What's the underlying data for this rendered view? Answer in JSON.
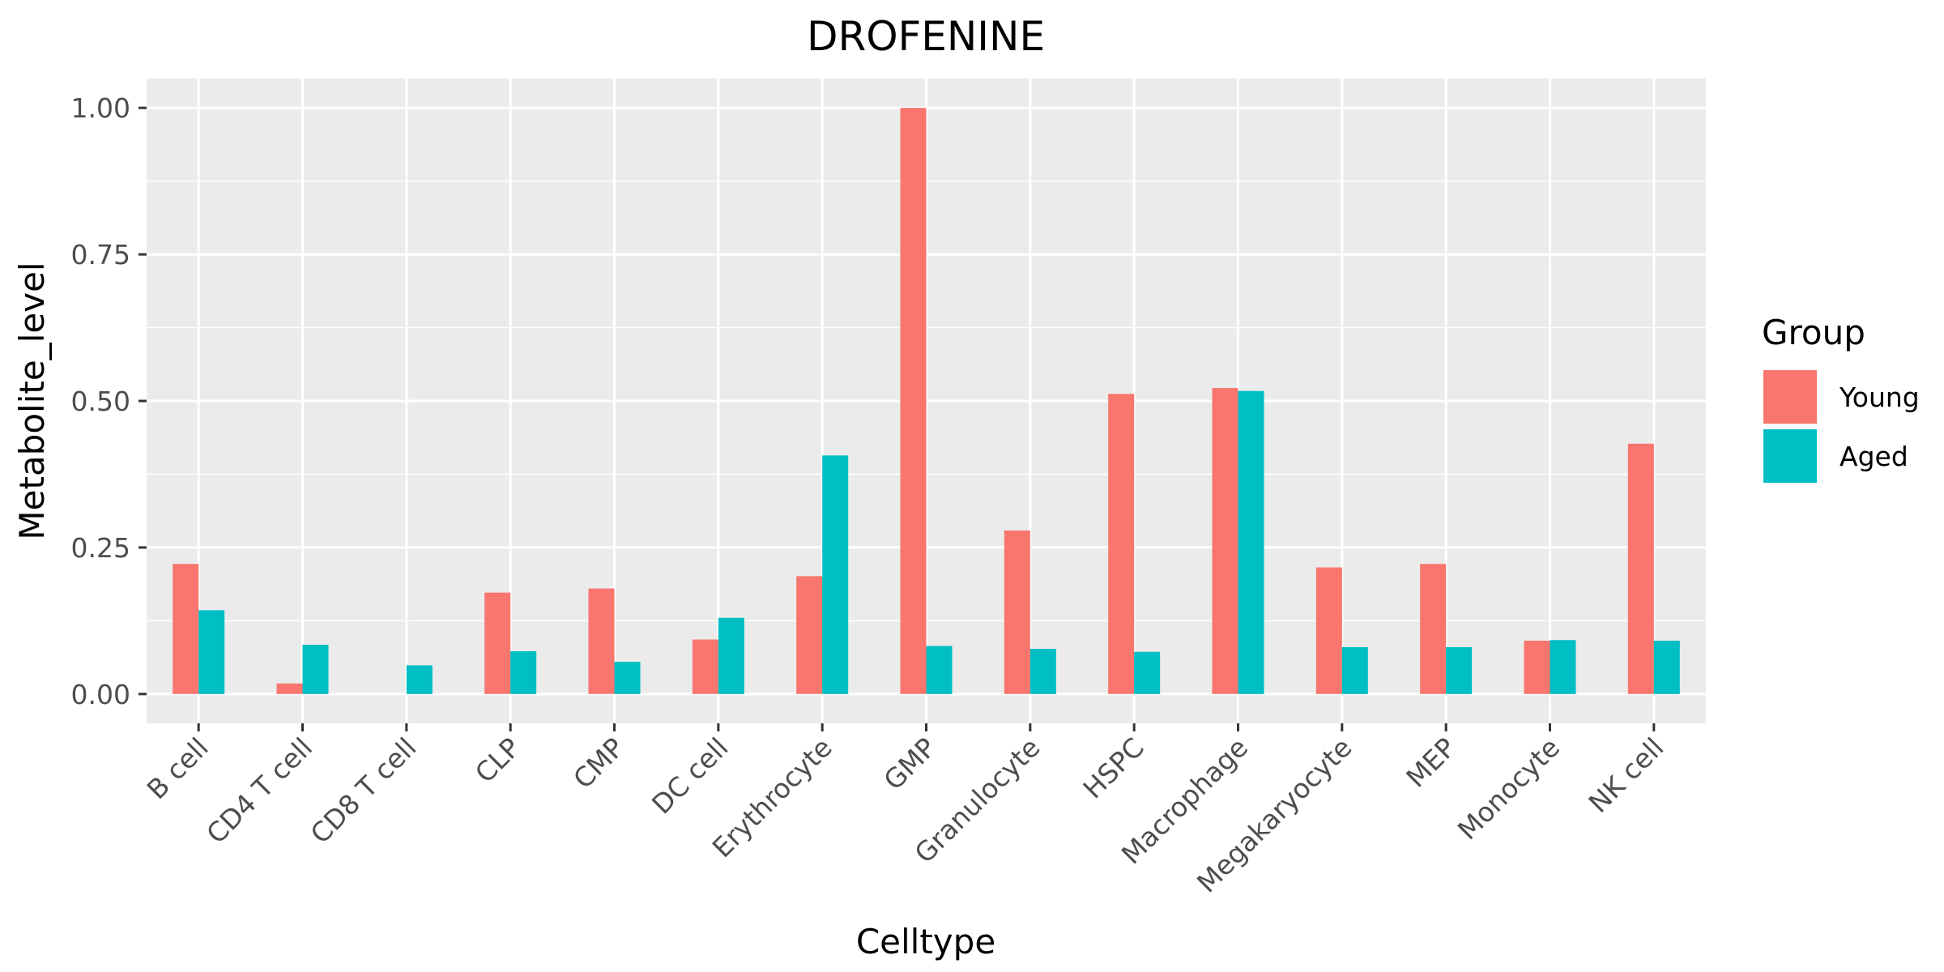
{
  "chart_data": {
    "type": "bar",
    "title": "DROFENINE",
    "xlabel": "Celltype",
    "ylabel": "Metabolite_level",
    "categories": [
      "B cell",
      "CD4 T cell",
      "CD8 T cell",
      "CLP",
      "CMP",
      "DC cell",
      "Erythrocyte",
      "GMP",
      "Granulocyte",
      "HSPC",
      "Macrophage",
      "Megakaryocyte",
      "MEP",
      "Monocyte",
      "NK cell"
    ],
    "series": [
      {
        "name": "Young",
        "color": "#F8766D",
        "values": [
          0.222,
          0.018,
          0.0,
          0.173,
          0.18,
          0.093,
          0.201,
          1.0,
          0.279,
          0.512,
          0.522,
          0.216,
          0.222,
          0.091,
          0.427
        ]
      },
      {
        "name": "Aged",
        "color": "#00BFC4",
        "values": [
          0.143,
          0.084,
          0.049,
          0.073,
          0.055,
          0.13,
          0.407,
          0.082,
          0.077,
          0.072,
          0.517,
          0.08,
          0.08,
          0.092,
          0.091
        ]
      }
    ],
    "ylim": [
      -0.05,
      1.05
    ],
    "yticks": [
      0,
      0.25,
      0.5,
      0.75,
      1.0
    ],
    "ytick_labels": [
      "0.00",
      "0.25",
      "0.50",
      "0.75",
      "1.00"
    ],
    "grid": true,
    "legend": {
      "title": "Group",
      "placement": "right"
    }
  }
}
